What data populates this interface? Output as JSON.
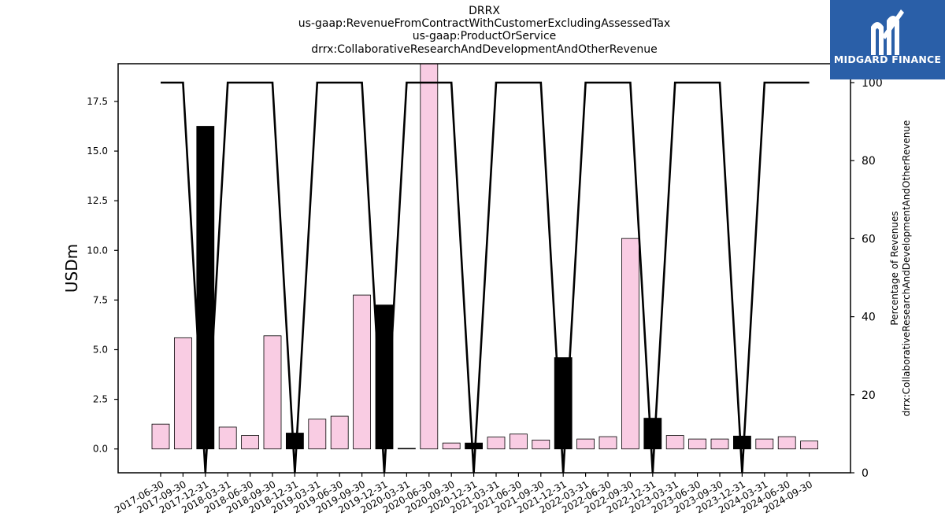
{
  "chart_data": {
    "type": "bar",
    "title_lines": [
      "DRRX",
      "us-gaap:RevenueFromContractWithCustomerExcludingAssessedTax",
      "us-gaap:ProductOrService",
      "drrx:CollaborativeResearchAndDevelopmentAndOtherRevenue"
    ],
    "ylabel": "USDm",
    "ylabel_right_lines": [
      "Percentage of Revenues",
      "drrx:CollaborativeResearchAndDevelopmentAndOtherRevenue"
    ],
    "ylim": [
      -1.2,
      19.4
    ],
    "yticks": [
      "0.0",
      "2.5",
      "5.0",
      "7.5",
      "10.0",
      "12.5",
      "15.0",
      "17.5"
    ],
    "ylim_right": [
      0,
      100
    ],
    "yticks_right": [
      "0",
      "20",
      "40",
      "60",
      "80",
      "100"
    ],
    "categories": [
      "2017-06-30",
      "2017-09-30",
      "2017-12-31",
      "2018-03-31",
      "2018-06-30",
      "2018-09-30",
      "2018-12-31",
      "2019-03-31",
      "2019-06-30",
      "2019-09-30",
      "2019-12-31",
      "2020-03-31",
      "2020-06-30",
      "2020-09-30",
      "2020-12-31",
      "2021-03-31",
      "2021-06-30",
      "2021-09-30",
      "2021-12-31",
      "2022-03-31",
      "2022-06-30",
      "2022-09-30",
      "2022-12-31",
      "2023-03-31",
      "2023-06-30",
      "2023-09-30",
      "2023-12-31",
      "2024-03-31",
      "2024-06-30",
      "2024-09-30"
    ],
    "series": [
      {
        "kind": "bar",
        "values": [
          1.25,
          5.6,
          16.25,
          1.1,
          0.68,
          5.7,
          0.8,
          1.5,
          1.65,
          7.75,
          7.25,
          0.02,
          19.5,
          0.3,
          0.3,
          0.6,
          0.75,
          0.45,
          4.6,
          0.5,
          0.62,
          10.6,
          1.55,
          0.68,
          0.5,
          0.5,
          0.65,
          0.5,
          0.62,
          0.4
        ],
        "colors": [
          "#f9cce3",
          "#f9cce3",
          "#000000",
          "#f9cce3",
          "#f9cce3",
          "#f9cce3",
          "#000000",
          "#f9cce3",
          "#f9cce3",
          "#f9cce3",
          "#000000",
          "#f9cce3",
          "#f9cce3",
          "#f9cce3",
          "#000000",
          "#f9cce3",
          "#f9cce3",
          "#f9cce3",
          "#000000",
          "#f9cce3",
          "#f9cce3",
          "#f9cce3",
          "#000000",
          "#f9cce3",
          "#f9cce3",
          "#f9cce3",
          "#000000",
          "#f9cce3",
          "#f9cce3",
          "#f9cce3"
        ]
      },
      {
        "kind": "line",
        "axis": "right",
        "values": [
          100,
          100,
          0,
          100,
          100,
          100,
          0,
          100,
          100,
          100,
          0,
          100,
          100,
          100,
          0,
          100,
          100,
          100,
          0,
          100,
          100,
          100,
          0,
          100,
          100,
          100,
          0,
          100,
          100,
          100
        ]
      }
    ],
    "colors": {
      "pink_bar": "#f9cce3",
      "black_bar": "#000000",
      "line": "#000000"
    }
  },
  "logo": {
    "text": "MIDGARD FINANCE",
    "background": "#2a5fa8",
    "icon": "midgard-m-logo"
  }
}
